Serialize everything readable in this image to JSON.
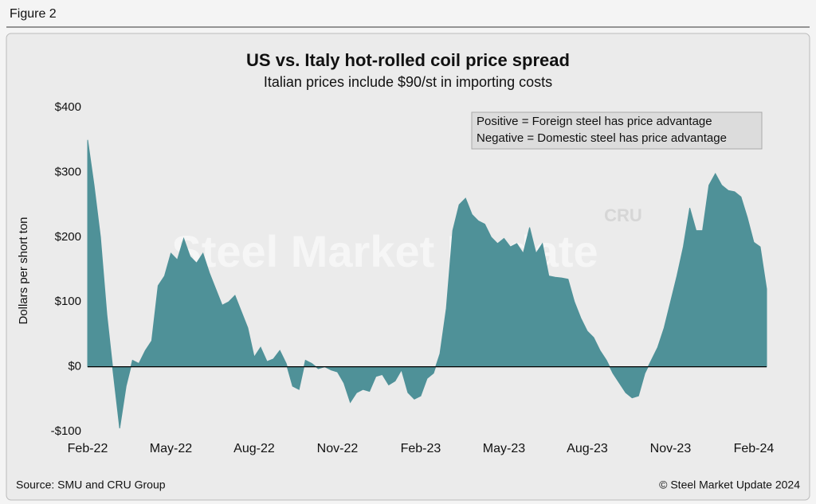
{
  "header": {
    "figure": "Figure 2"
  },
  "chart_data": {
    "type": "area",
    "title": "US vs. Italy hot-rolled coil price spread",
    "subtitle": "Italian prices include $90/st in importing costs",
    "y_label": "Dollars per short ton",
    "annotations": [
      "Positive = Foreign steel has price advantage",
      "Negative = Domestic steel has price advantage"
    ],
    "watermark": "Steel Market Update",
    "logo": "CRU",
    "categories": [
      "Feb-22",
      null,
      null,
      null,
      null,
      null,
      null,
      null,
      null,
      null,
      null,
      null,
      null,
      "May-22",
      null,
      null,
      null,
      null,
      null,
      null,
      null,
      null,
      null,
      null,
      null,
      null,
      "Aug-22",
      null,
      null,
      null,
      null,
      null,
      null,
      null,
      null,
      null,
      null,
      null,
      null,
      "Nov-22",
      null,
      null,
      null,
      null,
      null,
      null,
      null,
      null,
      null,
      null,
      null,
      null,
      "Feb-23",
      null,
      null,
      null,
      null,
      null,
      null,
      null,
      null,
      null,
      null,
      null,
      null,
      "May-23",
      null,
      null,
      null,
      null,
      null,
      null,
      null,
      null,
      null,
      null,
      null,
      null,
      "Aug-23",
      null,
      null,
      null,
      null,
      null,
      null,
      null,
      null,
      null,
      null,
      null,
      null,
      "Nov-23",
      null,
      null,
      null,
      null,
      null,
      null,
      null,
      null,
      null,
      null,
      null,
      null,
      "Feb-24",
      null,
      null
    ],
    "values": [
      350,
      280,
      200,
      80,
      -10,
      -95,
      -30,
      10,
      5,
      25,
      40,
      125,
      140,
      175,
      165,
      198,
      170,
      160,
      175,
      145,
      120,
      95,
      100,
      110,
      85,
      60,
      15,
      30,
      8,
      12,
      25,
      5,
      -30,
      -35,
      10,
      5,
      -3,
      0,
      -5,
      -8,
      -25,
      -55,
      -40,
      -35,
      -38,
      -15,
      -12,
      -28,
      -22,
      -5,
      -40,
      -50,
      -45,
      -18,
      -10,
      20,
      90,
      210,
      250,
      260,
      235,
      225,
      220,
      200,
      190,
      198,
      185,
      190,
      175,
      215,
      175,
      190,
      140,
      138,
      137,
      135,
      100,
      75,
      55,
      45,
      25,
      10,
      -10,
      -25,
      -40,
      -48,
      -45,
      -10,
      10,
      30,
      60,
      100,
      140,
      185,
      245,
      210,
      210,
      280,
      298,
      280,
      272,
      270,
      262,
      230,
      192,
      185,
      120
    ],
    "color": "#4f9198",
    "ylim": [
      -100,
      400
    ],
    "yticks": [
      {
        "value": -100,
        "label": "-$100"
      },
      {
        "value": 0,
        "label": "$0"
      },
      {
        "value": 100,
        "label": "$100"
      },
      {
        "value": 200,
        "label": "$200"
      },
      {
        "value": 300,
        "label": "$300"
      },
      {
        "value": 400,
        "label": "$400"
      }
    ]
  },
  "footer": {
    "source": "Source: SMU and CRU Group",
    "copyright": "© Steel Market Update 2024"
  }
}
